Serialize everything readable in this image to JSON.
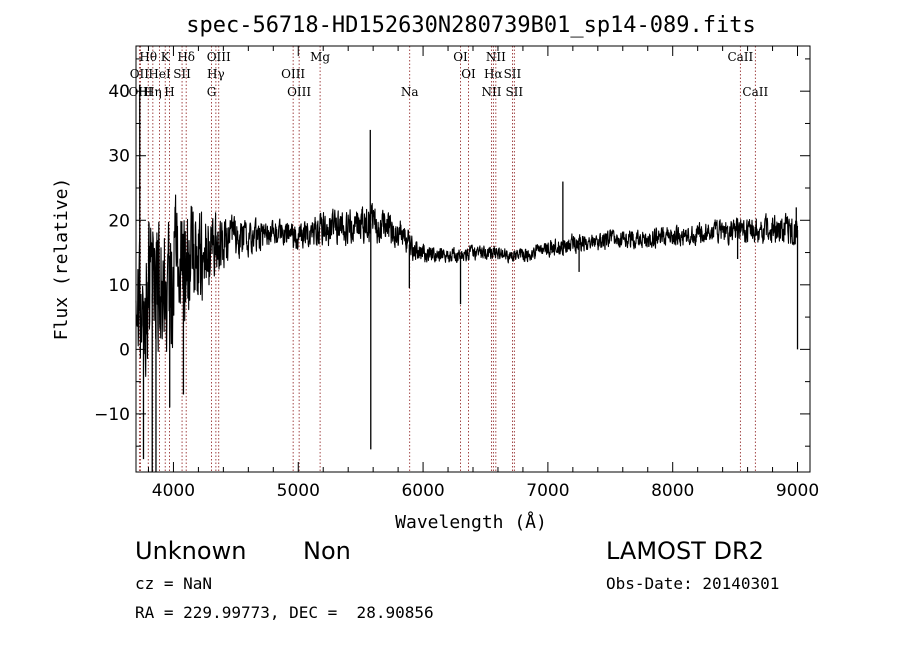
{
  "chart_data": {
    "type": "line",
    "title": "spec-56718-HD152630N280739B01_sp14-089.fits",
    "xlabel": "Wavelength (Å)",
    "ylabel": "Flux (relative)",
    "xlim": [
      3700,
      9100
    ],
    "ylim": [
      -19,
      47
    ],
    "xticks": [
      4000,
      5000,
      6000,
      7000,
      8000,
      9000
    ],
    "yticks": [
      -10,
      0,
      10,
      20,
      30,
      40
    ],
    "xtick_labels": [
      "4000",
      "5000",
      "6000",
      "7000",
      "8000",
      "9000"
    ],
    "ytick_labels": [
      "−10",
      "0",
      "10",
      "20",
      "30",
      "40"
    ],
    "line_color": "#000000",
    "marker_color": "#8b1a1a",
    "lines": [
      {
        "label": "Hθ",
        "wave": 3798,
        "row": 1
      },
      {
        "label": "K",
        "wave": 3934,
        "row": 1
      },
      {
        "label": "Hδ",
        "wave": 4102,
        "row": 1
      },
      {
        "label": "OIII",
        "wave": 4363,
        "row": 1
      },
      {
        "label": "Mg",
        "wave": 5175,
        "row": 1
      },
      {
        "label": "OI",
        "wave": 6300,
        "row": 1
      },
      {
        "label": "NII",
        "wave": 6583,
        "row": 1
      },
      {
        "label": "CaII",
        "wave": 8542,
        "row": 1
      },
      {
        "label": "OII",
        "wave": 3727,
        "row": 2
      },
      {
        "label": "HeI",
        "wave": 3889,
        "row": 2
      },
      {
        "label": "SII",
        "wave": 4069,
        "row": 2
      },
      {
        "label": "Hγ",
        "wave": 4340,
        "row": 2
      },
      {
        "label": "OIII",
        "wave": 4959,
        "row": 2
      },
      {
        "label": "OI",
        "wave": 6364,
        "row": 2
      },
      {
        "label": "Hα",
        "wave": 6563,
        "row": 2
      },
      {
        "label": "SII",
        "wave": 6716,
        "row": 2
      },
      {
        "label": "OIII",
        "wave": 3736,
        "row": 3
      },
      {
        "label": "Hη",
        "wave": 3835,
        "row": 3
      },
      {
        "label": "H",
        "wave": 3968,
        "row": 3
      },
      {
        "label": "G",
        "wave": 4305,
        "row": 3
      },
      {
        "label": "OIII",
        "wave": 5007,
        "row": 3
      },
      {
        "label": "Na",
        "wave": 5893,
        "row": 3
      },
      {
        "label": "NII",
        "wave": 6548,
        "row": 3
      },
      {
        "label": "SII",
        "wave": 6731,
        "row": 3
      },
      {
        "label": "CaII",
        "wave": 8662,
        "row": 3
      }
    ],
    "spectrum": {
      "x": [
        3700,
        3800,
        3900,
        4000,
        4100,
        4200,
        4300,
        4400,
        4500,
        4600,
        4700,
        4800,
        4900,
        5000,
        5100,
        5200,
        5300,
        5400,
        5500,
        5600,
        5700,
        5800,
        5900,
        6000,
        6100,
        6200,
        6300,
        6400,
        6500,
        6600,
        6700,
        6800,
        6900,
        7000,
        7100,
        7200,
        7300,
        7400,
        7500,
        7600,
        7700,
        7800,
        7900,
        8000,
        8100,
        8200,
        8300,
        8400,
        8500,
        8600,
        8700,
        8800,
        8900,
        9000
      ],
      "y": [
        5,
        8,
        10,
        12,
        13,
        14,
        15.5,
        16.5,
        17,
        17,
        17.5,
        18,
        17.5,
        17.5,
        18,
        18.5,
        18.5,
        19,
        19.5,
        19.5,
        19,
        18.5,
        16,
        15,
        14.5,
        14.5,
        14.5,
        15,
        15,
        15,
        14.5,
        14.5,
        15,
        15.5,
        16,
        16.5,
        16.5,
        16.5,
        17,
        17,
        17,
        17,
        17.5,
        17.5,
        17.5,
        18,
        18,
        18.5,
        18.5,
        18.5,
        18.5,
        18.5,
        18.5,
        18.5
      ],
      "noise": [
        10,
        12,
        12,
        11,
        10,
        9,
        6,
        4,
        3.5,
        3,
        2.5,
        2.2,
        2.2,
        2.2,
        2.5,
        2.8,
        3,
        3,
        3,
        3,
        3,
        2.5,
        2.2,
        1.6,
        1.4,
        1.2,
        1.2,
        1.2,
        1.2,
        1.1,
        1.1,
        1.1,
        1.2,
        1.3,
        1.5,
        1.5,
        1.5,
        1.5,
        1.5,
        1.5,
        1.5,
        1.6,
        1.6,
        1.6,
        1.6,
        1.7,
        1.8,
        2,
        2.2,
        2.2,
        2.2,
        2.3,
        2.5,
        2.8
      ],
      "spikes": [
        {
          "x": 3730,
          "y": 41
        },
        {
          "x": 3760,
          "y": -17
        },
        {
          "x": 3830,
          "y": -19
        },
        {
          "x": 3860,
          "y": -19
        },
        {
          "x": 3970,
          "y": -9
        },
        {
          "x": 4080,
          "y": -7
        },
        {
          "x": 5577,
          "y": 34
        },
        {
          "x": 5581,
          "y": -15.5
        },
        {
          "x": 5890,
          "y": 9.5
        },
        {
          "x": 6300,
          "y": 7
        },
        {
          "x": 7120,
          "y": 26
        },
        {
          "x": 7250,
          "y": 12
        },
        {
          "x": 8520,
          "y": 14
        },
        {
          "x": 8990,
          "y": 22
        },
        {
          "x": 9000,
          "y": 0
        }
      ]
    }
  },
  "info": {
    "object": "Unknown",
    "subclass": "Non",
    "cz": "cz = NaN",
    "coords": "RA = 229.99773, DEC =  28.90856",
    "survey": "LAMOST DR2",
    "obs_date": "Obs-Date: 20140301"
  }
}
